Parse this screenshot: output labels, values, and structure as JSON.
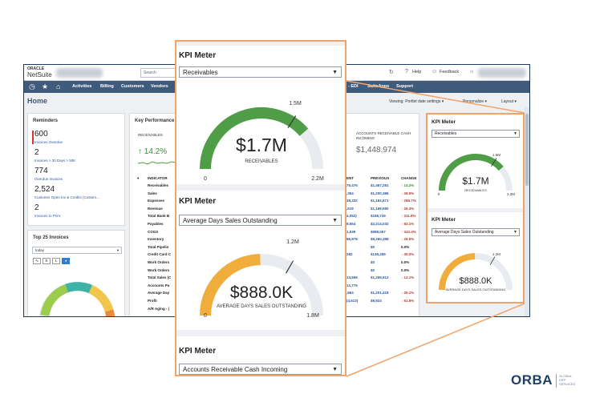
{
  "netsuite": {
    "logo_top": "ORACLE",
    "logo_bottom": "NetSuite",
    "search_placeholder": "Search",
    "top_links": {
      "help": "Help",
      "feedback": "Feedback"
    },
    "nav": [
      "Activities",
      "Billing",
      "Customers",
      "Vendors"
    ],
    "nav_right": [
      "- EDI",
      "SuiteApps",
      "Support"
    ],
    "page_title": "Home",
    "viewing": "Viewing: Portlet date settings ▾",
    "personalize": "Personalize ▾",
    "layout": "Layout ▾",
    "reminders": {
      "title": "Reminders",
      "items": [
        {
          "count": "600",
          "label": "Invoices Overdue"
        },
        {
          "count": "2",
          "label": "Invoices > 30 Days > 50K"
        },
        {
          "count": "774",
          "label": "Overdue Invoices"
        },
        {
          "count": "2,524",
          "label": "Customer Open Inv & Credits (Custom..."
        },
        {
          "count": "2",
          "label": "Invoices to Print"
        }
      ]
    },
    "top_invoices": {
      "title": "Top 25 Invoices",
      "period": "today"
    },
    "kpi": {
      "title": "Key Performance",
      "receivables_head": "RECEIVABLES",
      "receivables_change": "↑ 14.2%",
      "cash_head": "ACCOUNTS RECEIVABLE CASH INCOMING",
      "cash_value": "$1,448,974",
      "columns": {
        "indicator": "INDICATOR",
        "current": "ENT",
        "previous": "PREVIOUS",
        "change": "CHANGE"
      },
      "rows": [
        {
          "indicator": "Receivables",
          "current": "75,476",
          "previous": "$1,467,281",
          "change": "↑ 14.2%",
          "dir": "up"
        },
        {
          "indicator": "Sales",
          "current": ",354",
          "previous": "$1,200,386",
          "change": "↓ 26.5%",
          "dir": "dn"
        },
        {
          "indicator": "Expenses",
          "current": "39,332",
          "previous": "$1,162,671",
          "change": "↑ 286.7%",
          "dir": "dn"
        },
        {
          "indicator": "Revenue",
          "current": ",519",
          "previous": "$1,169,590",
          "change": "↓ 26.3%",
          "dir": "dn"
        },
        {
          "indicator": "Total Bank B",
          "current": "4,052)",
          "previous": "$155,729",
          "change": "↑ 211.8%",
          "dir": "dn"
        },
        {
          "indicator": "Payables",
          "current": "8,654",
          "previous": "$2,214,032",
          "change": "↑ 82.1%",
          "dir": "dn"
        },
        {
          "indicator": "COGS",
          "current": "1,939",
          "previous": "$998,067",
          "change": "↑ 342.4%",
          "dir": "dn"
        },
        {
          "indicator": "Inventory",
          "current": "96,978",
          "previous": "$9,260,398",
          "change": "↓ 26.5%",
          "dir": "dn"
        },
        {
          "indicator": "Total Pipelin",
          "current": "",
          "previous": "$0",
          "change": "0.0%",
          "dir": "zero"
        },
        {
          "indicator": "Credit Card C",
          "current": "282",
          "previous": "$136,259",
          "change": "↓ 30.0%",
          "dir": "dn"
        },
        {
          "indicator": "Work Orders",
          "current": "",
          "previous": "$0",
          "change": "0.0%",
          "dir": "zero"
        },
        {
          "indicator": "Work Orders",
          "current": "",
          "previous": "$0",
          "change": "0.0%",
          "dir": "zero"
        },
        {
          "indicator": "Total Sales (C",
          "current": "13,659",
          "previous": "$1,269,912",
          "change": "↓ 12.1%",
          "dir": "dn"
        },
        {
          "indicator": "Accounts Pa",
          "current": "12,775",
          "previous": "",
          "change": "",
          "dir": "zero"
        },
        {
          "indicator": "Average Day",
          "current": ",864",
          "previous": "$1,201,418",
          "change": "↓ 26.1%",
          "dir": "dn"
        },
        {
          "indicator": "Profit",
          "current": "(4,613)",
          "previous": "$9,924",
          "change": "↓ 61.8%",
          "dir": "dn"
        },
        {
          "indicator": "A/R Aging - (",
          "current": "",
          "previous": "",
          "change": "",
          "dir": "zero"
        }
      ]
    }
  },
  "callout": {
    "meters": [
      {
        "title": "KPI Meter",
        "selected": "Receivables",
        "value": "$1.7M",
        "label": "RECEIVABLES",
        "min": "0",
        "max": "2.2M",
        "marker": "1.5M",
        "fraction": 0.773,
        "marker_fraction": 0.682,
        "color": "#4f9e47"
      },
      {
        "title": "KPI Meter",
        "selected": "Average Days Sales Outstanding",
        "value": "$888.0K",
        "label": "AVERAGE DAYS SALES OUTSTANDING",
        "min": "0",
        "max": "1.8M",
        "marker": "1.2M",
        "fraction": 0.493,
        "marker_fraction": 0.667,
        "color": "#f0ad3c"
      },
      {
        "title": "KPI Meter",
        "selected": "Accounts Receivable Cash Incoming"
      }
    ]
  },
  "small_card": {
    "meters": [
      {
        "title": "KPI Meter",
        "selected": "Receivables",
        "value": "$1.7M",
        "label": "RECEIVABLES",
        "min": "0",
        "max": "2.2M",
        "marker": "1.5M"
      },
      {
        "title": "KPI Meter",
        "selected": "Average Days Sales Outstanding",
        "value": "$888.0K",
        "label": "AVERAGE DAYS SALES OUTSTANDING",
        "marker": "1.2M"
      }
    ]
  },
  "brand": {
    "name_prefix": "ORBA",
    "tagline": [
      "GLOBAL",
      "ERP",
      "SERVICES"
    ],
    "accent": "#f0a46a"
  }
}
